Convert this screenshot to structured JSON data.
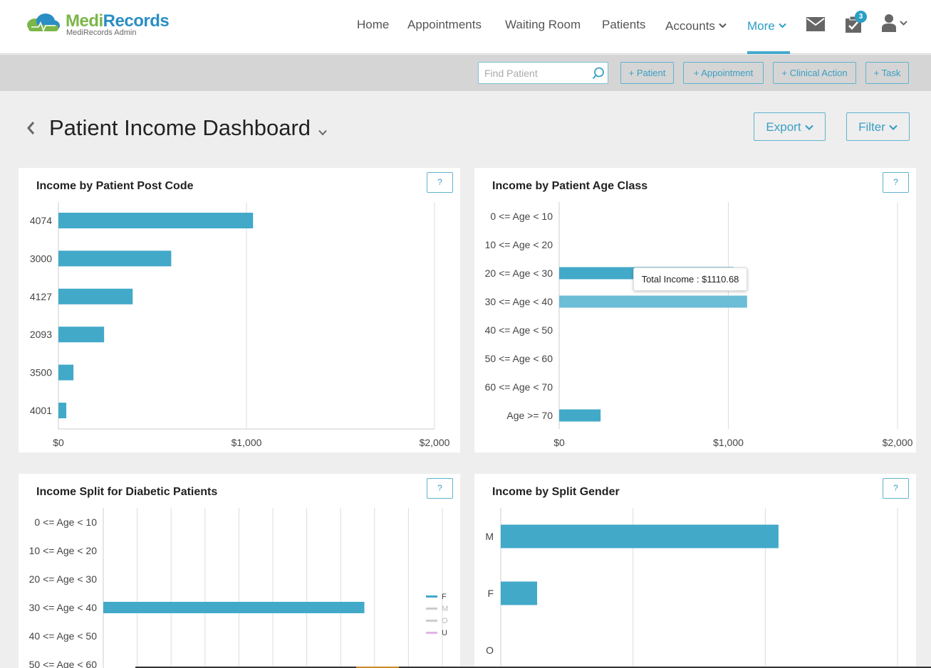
{
  "brand": {
    "name_part1": "Medi",
    "name_part2": "Records",
    "subtitle": "MediRecords Admin",
    "colors": {
      "green": "#7ab648",
      "blue": "#2a8ec4"
    }
  },
  "nav": {
    "items": [
      {
        "label": "Home"
      },
      {
        "label": "Appointments"
      },
      {
        "label": "Waiting Room"
      },
      {
        "label": "Patients"
      },
      {
        "label": "Accounts",
        "dropdown": true
      },
      {
        "label": "More",
        "dropdown": true,
        "active": true
      }
    ],
    "icons": [
      "envelope-icon",
      "tasks-icon",
      "user-icon"
    ],
    "tasks_badge": "3"
  },
  "actionbar": {
    "search_placeholder": "Find Patient",
    "buttons": [
      "+ Patient",
      "+ Appointment",
      "+ Clinical Action",
      "+ Task"
    ]
  },
  "page": {
    "title": "Patient Income Dashboard",
    "export_label": "Export",
    "filter_label": "Filter"
  },
  "help_label": "?",
  "colors": {
    "accent": "#42a9c9",
    "accent_light": "#6cbdd6",
    "grid": "#dddddd"
  },
  "chart_data": [
    {
      "type": "bar",
      "orientation": "horizontal",
      "title": "Income by Patient Post Code",
      "categories": [
        "4074",
        "3000",
        "4127",
        "2093",
        "3500",
        "4001"
      ],
      "values": [
        1035,
        600,
        395,
        243,
        80,
        42
      ],
      "xlim": [
        0,
        2000
      ],
      "xticks": [
        "$0",
        "$1,000",
        "$2,000"
      ],
      "grid": true
    },
    {
      "type": "bar",
      "orientation": "horizontal",
      "title": "Income by Patient Age Class",
      "categories": [
        "0 <= Age < 10",
        "10 <= Age < 20",
        "20 <= Age < 30",
        "30 <= Age < 40",
        "40 <= Age < 50",
        "50 <= Age < 60",
        "60 <= Age < 70",
        "Age >= 70"
      ],
      "values": [
        0,
        0,
        1030,
        1110.68,
        0,
        0,
        0,
        245
      ],
      "highlighted_index": 3,
      "tooltip": "Total Income : $1110.68",
      "xlim": [
        0,
        2000
      ],
      "xticks": [
        "$0",
        "$1,000",
        "$2,000"
      ],
      "grid": true
    },
    {
      "type": "bar",
      "orientation": "horizontal",
      "title": "Income Split for Diabetic Patients",
      "categories": [
        "0 <= Age < 10",
        "10 <= Age < 20",
        "20 <= Age < 30",
        "30 <= Age < 40",
        "40 <= Age < 50",
        "50 <= Age < 60"
      ],
      "series": [
        {
          "name": "F",
          "color": "#42a9c9",
          "values": [
            0,
            0,
            0,
            7.7,
            0,
            0
          ]
        },
        {
          "name": "M",
          "color": "#cccccc",
          "values": [
            0,
            0,
            0,
            0,
            0,
            0
          ]
        },
        {
          "name": "O",
          "color": "#cccccc",
          "values": [
            0,
            0,
            0,
            0,
            0,
            0
          ]
        },
        {
          "name": "U",
          "color": "#e6b3e6",
          "values": [
            0,
            0,
            0,
            0,
            0,
            0
          ]
        }
      ],
      "xlim": [
        0,
        10
      ],
      "legend": "right",
      "grid": true
    },
    {
      "type": "bar",
      "orientation": "horizontal",
      "title": "Income by Split Gender",
      "categories": [
        "M",
        "F",
        "O"
      ],
      "values": [
        2100,
        275,
        0
      ],
      "xlim": [
        0,
        3000
      ],
      "grid": true
    }
  ]
}
